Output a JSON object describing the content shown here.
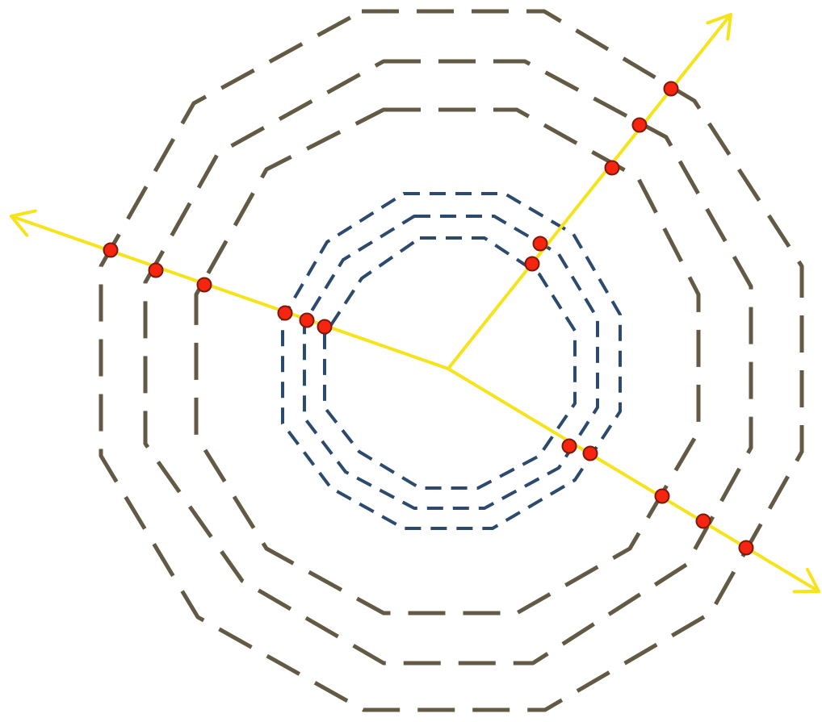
{
  "colors": {
    "background": "#ffffff",
    "outer_layers": "#625a45",
    "inner_layers": "#2b4a6e",
    "tracks": "#f7e31a",
    "hits_fill": "#f5250f",
    "hits_stroke": "#7a1a08"
  },
  "layers": {
    "inner_count": 3,
    "outer_count": 3,
    "shape": "dodecagon",
    "line_style": "dashed"
  },
  "tracks": [
    {
      "name": "track-left",
      "direction": "upper-left",
      "hit_count": 6
    },
    {
      "name": "track-upper-right",
      "direction": "upper-right",
      "hit_count": 5
    },
    {
      "name": "track-lower-right",
      "direction": "lower-right",
      "hit_count": 5
    }
  ],
  "markers": {
    "hit_shape": "circle",
    "arrow_head": "open-chevron"
  }
}
